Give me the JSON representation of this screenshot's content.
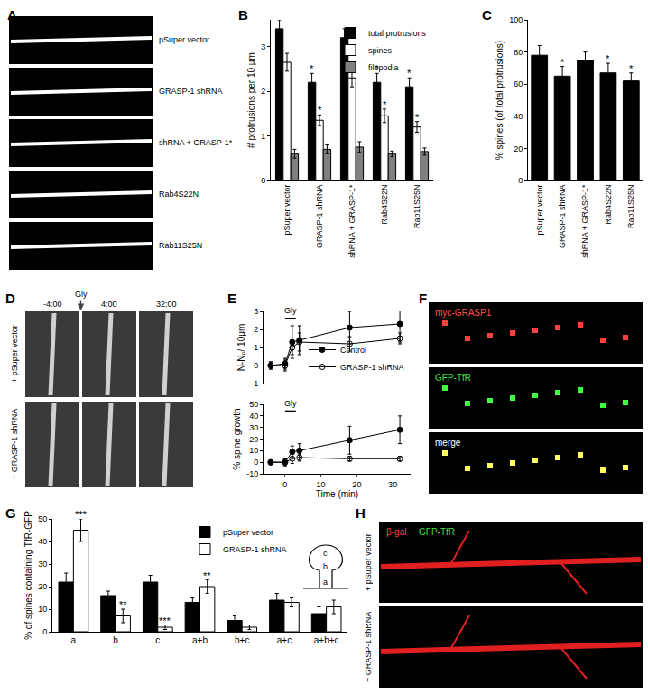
{
  "image_panels": [
    {
      "panel": "A",
      "labels": [
        "pSuper vector",
        "GRASP-1 shRNA",
        "shRNA + GRASP-1*",
        "Rab4S22N",
        "Rab11S25N"
      ]
    },
    {
      "panel": "D",
      "row_labels": [
        "+ pSuper vector",
        "+ GRASP-1 shRNA"
      ],
      "time_labels": [
        "-4:00",
        "4:00",
        "32:00"
      ],
      "marker_label": "Gly"
    },
    {
      "panel": "F",
      "labels": [
        "myc-GRASP1",
        "GFP-TfR",
        "merge"
      ]
    },
    {
      "panel": "H",
      "channel_labels": [
        "β-gal",
        "GFP-TfR"
      ],
      "row_labels": [
        "+ pSuper vector",
        "+ GRASP-1 shRNA"
      ]
    }
  ],
  "chart_data": [
    {
      "panel": "B",
      "type": "bar",
      "y_label": "# protrusions per 10 μm",
      "categories": [
        "pSuper vector",
        "GRASP-1 shRNA",
        "shRNA + GRASP-1*",
        "Rab4S22N",
        "Rab11S25N"
      ],
      "series": [
        {
          "name": "total protrusions",
          "color": "#000000",
          "values": [
            3.4,
            2.2,
            3.2,
            2.2,
            2.1
          ],
          "errors": [
            0.2,
            0.2,
            0.2,
            0.2,
            0.2
          ],
          "significance": [
            null,
            "*",
            null,
            "*",
            "*"
          ]
        },
        {
          "name": "spines",
          "color": "#ffffff",
          "values": [
            2.65,
            1.35,
            2.3,
            1.45,
            1.2
          ],
          "errors": [
            0.2,
            0.12,
            0.2,
            0.15,
            0.12
          ],
          "significance": [
            null,
            "*",
            null,
            "*",
            "*"
          ]
        },
        {
          "name": "filopodia",
          "color": "#808080",
          "values": [
            0.6,
            0.7,
            0.75,
            0.6,
            0.65
          ],
          "errors": [
            0.1,
            0.1,
            0.12,
            0.06,
            0.08
          ]
        }
      ],
      "ylim": [
        0,
        3.6
      ],
      "yticks": [
        0,
        1,
        2,
        3
      ],
      "legend": "top right"
    },
    {
      "panel": "C",
      "type": "bar",
      "y_label": "% spines (of total protrusions)",
      "categories": [
        "pSuper vector",
        "GRASP-1 shRNA",
        "shRNA + GRASP-1*",
        "Rab4S22N",
        "Rab11S25N"
      ],
      "values": [
        78,
        65,
        75,
        67,
        62
      ],
      "errors": [
        6,
        6,
        5,
        6,
        5
      ],
      "significance": [
        null,
        "*",
        null,
        "*",
        "*"
      ],
      "color": "#000000",
      "ylim": [
        0,
        100
      ],
      "yticks": [
        0,
        20,
        40,
        60,
        80,
        100
      ]
    },
    {
      "panel": "E",
      "type": "line",
      "y_label": "N-N₀/ 10μm",
      "x": [
        -4,
        0,
        2,
        4,
        18,
        32
      ],
      "series": [
        {
          "name": "Control",
          "color": "#000000",
          "marker": "circle",
          "values": [
            0,
            0.1,
            1.3,
            1.4,
            2.1,
            2.3
          ],
          "errors": [
            0.2,
            0.3,
            0.9,
            0.8,
            0.9,
            1.0
          ]
        },
        {
          "name": "GRASP-1 shRNA",
          "color": "#000000",
          "marker": "circle-open",
          "values": [
            0,
            0,
            1.0,
            1.3,
            1.2,
            1.5
          ],
          "errors": [
            0.2,
            0.3,
            0.4,
            0.5,
            0.4,
            0.3
          ]
        }
      ],
      "xlim": [
        -6,
        35
      ],
      "ylim": [
        -1,
        3
      ],
      "yticks": [
        -1,
        0,
        1,
        2,
        3
      ],
      "tick_labels": "y",
      "legend": "bottom right",
      "annotations": [
        {
          "text": "Gly",
          "x_start": 0,
          "x_end": 3
        }
      ]
    },
    {
      "type": "line",
      "y_label": "% spine growth",
      "x_label": "Time (min)",
      "x": [
        -4,
        0,
        2,
        4,
        18,
        32
      ],
      "series": [
        {
          "name": "Control",
          "color": "#000000",
          "marker": "circle",
          "values": [
            0,
            0,
            9,
            10,
            19,
            28
          ],
          "errors": [
            2,
            3,
            5,
            6,
            12,
            12
          ]
        },
        {
          "name": "GRASP-1 shRNA",
          "color": "#000000",
          "marker": "circle-open",
          "values": [
            0,
            0,
            3,
            4,
            3,
            3
          ],
          "errors": [
            2,
            3,
            4,
            3,
            2,
            2
          ]
        }
      ],
      "xlim": [
        -6,
        35
      ],
      "xticks": [
        0,
        10,
        20,
        30
      ],
      "ylim": [
        -10,
        50
      ],
      "yticks": [
        -10,
        0,
        10,
        20,
        30,
        40,
        50
      ],
      "annotations": [
        {
          "text": "Gly",
          "x_start": 0,
          "x_end": 3
        }
      ]
    },
    {
      "panel": "G",
      "type": "bar",
      "y_label": "% of spines containing TfR-GFP",
      "categories": [
        "a",
        "b",
        "c",
        "a+b",
        "b+c",
        "a+c",
        "a+b+c"
      ],
      "series": [
        {
          "name": "pSuper vector",
          "color": "#000000",
          "values": [
            22,
            16,
            22,
            13,
            5,
            14,
            8
          ],
          "errors": [
            4,
            2,
            3,
            2,
            2,
            3,
            3
          ]
        },
        {
          "name": "GRASP-1 shRNA",
          "color": "#ffffff",
          "values": [
            45,
            7,
            2,
            20,
            2,
            13,
            11
          ],
          "errors": [
            5,
            3,
            1,
            3,
            1,
            2,
            3
          ],
          "significance": [
            "***",
            "**",
            "***",
            "**",
            null,
            null,
            null
          ]
        }
      ],
      "ylim": [
        0,
        50
      ],
      "yticks": [
        0,
        10,
        20,
        30,
        40,
        50
      ],
      "legend": "top right",
      "inset_labels": [
        "c",
        "b",
        "a"
      ]
    }
  ]
}
